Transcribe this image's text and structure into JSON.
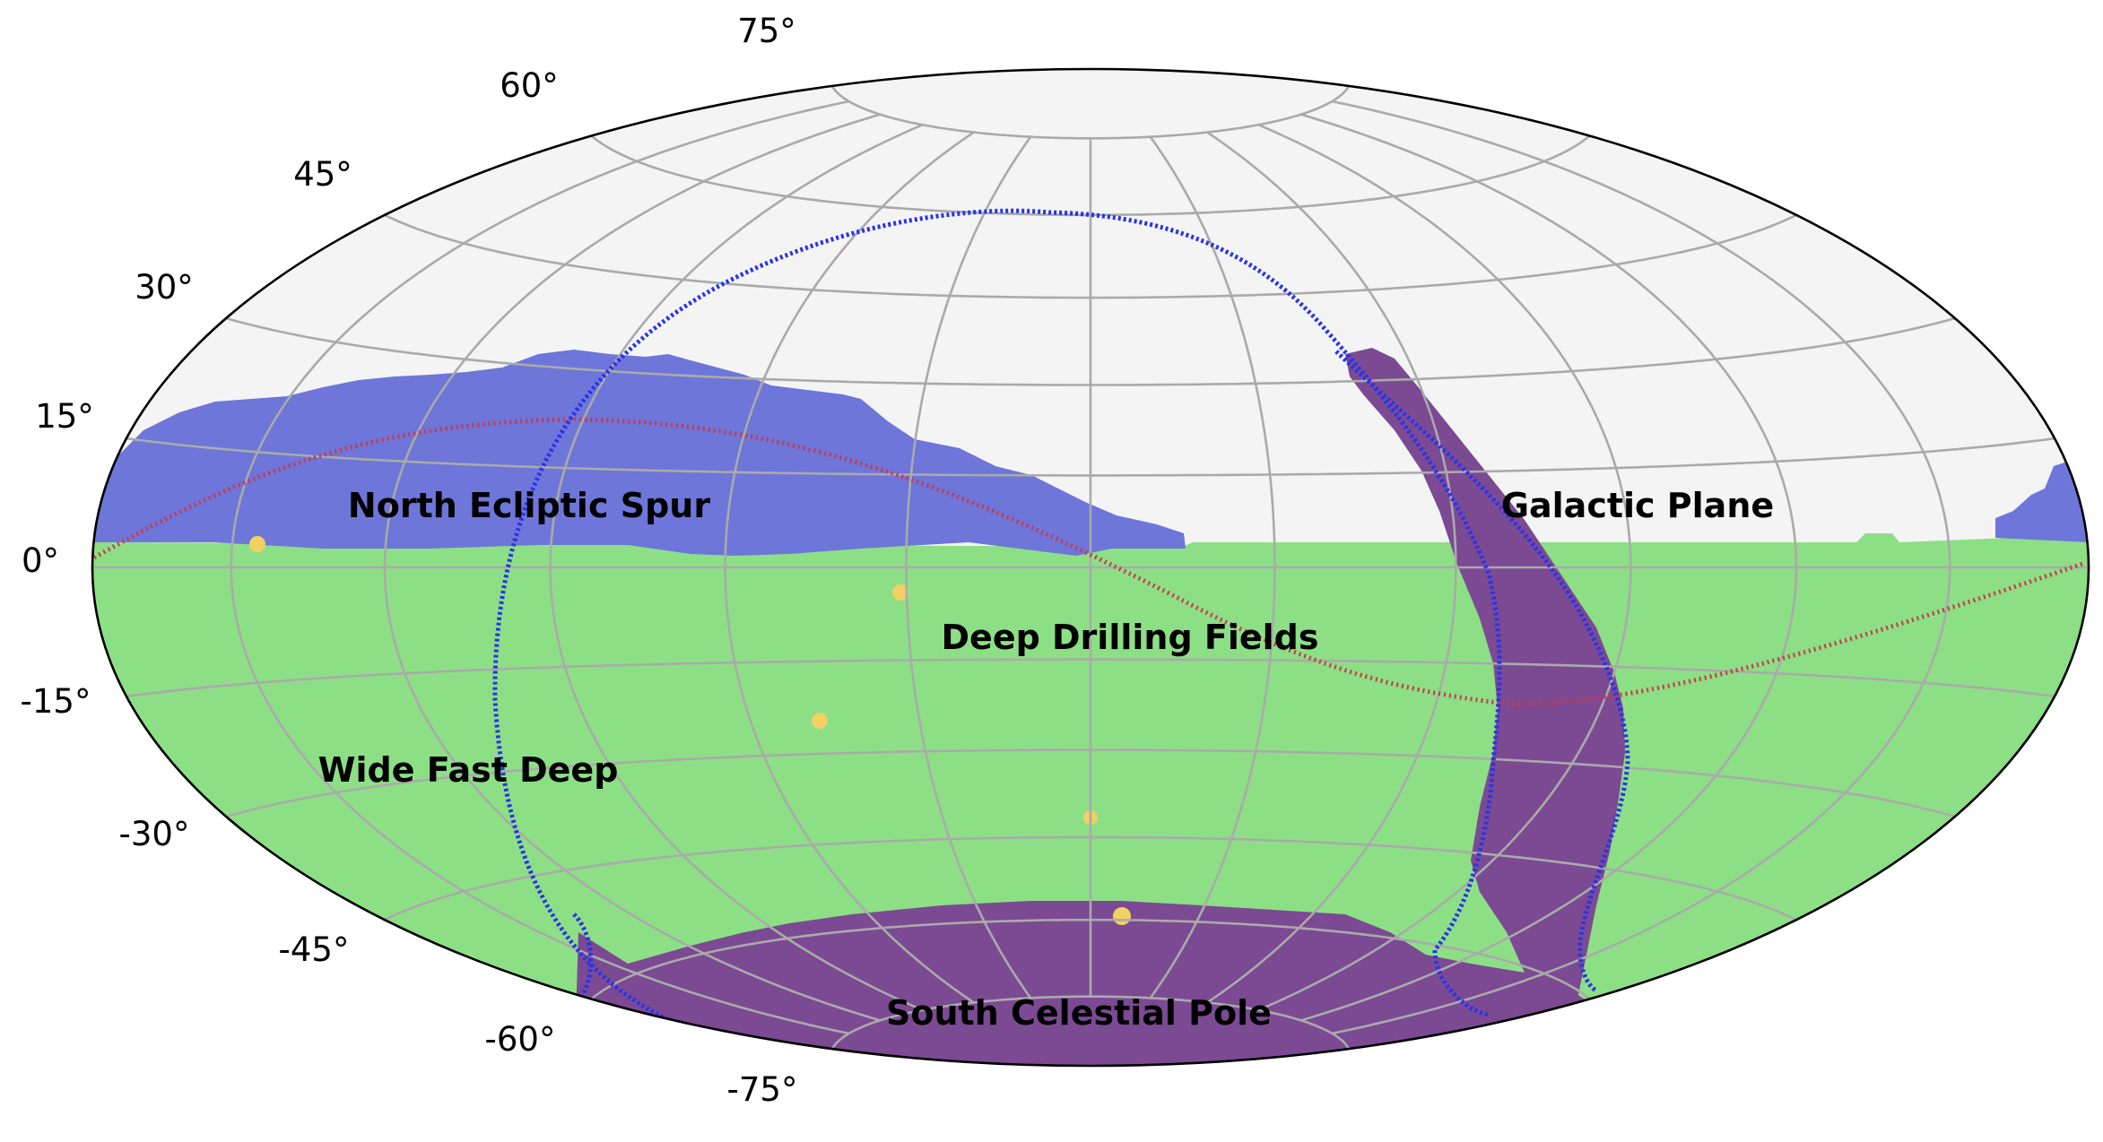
{
  "map": {
    "projection": "Aitoff-Hammer all-sky (equatorial)",
    "latitude_labels": [
      "75°",
      "60°",
      "45°",
      "30°",
      "15°",
      "0°",
      "-15°",
      "-30°",
      "-45°",
      "-60°",
      "-75°"
    ],
    "regions": [
      {
        "id": "north-ecliptic-spur",
        "label": "North Ecliptic Spur",
        "color": "#6e76d9"
      },
      {
        "id": "galactic-plane",
        "label": "Galactic Plane",
        "color": "#7b4a93"
      },
      {
        "id": "deep-drilling-fields",
        "label": "Deep Drilling Fields",
        "color": "#f2d064"
      },
      {
        "id": "wide-fast-deep",
        "label": "Wide Fast Deep",
        "color": "#8ddf86"
      },
      {
        "id": "south-celestial-pole",
        "label": "South Celestial Pole",
        "color": "#7b4a93"
      }
    ],
    "colors": {
      "background": "#f4f4f4",
      "grid": "#aaaaaa",
      "ecliptic": "#c8384c",
      "galactic_boundary": "#2a33e8",
      "border": "#000000"
    }
  }
}
